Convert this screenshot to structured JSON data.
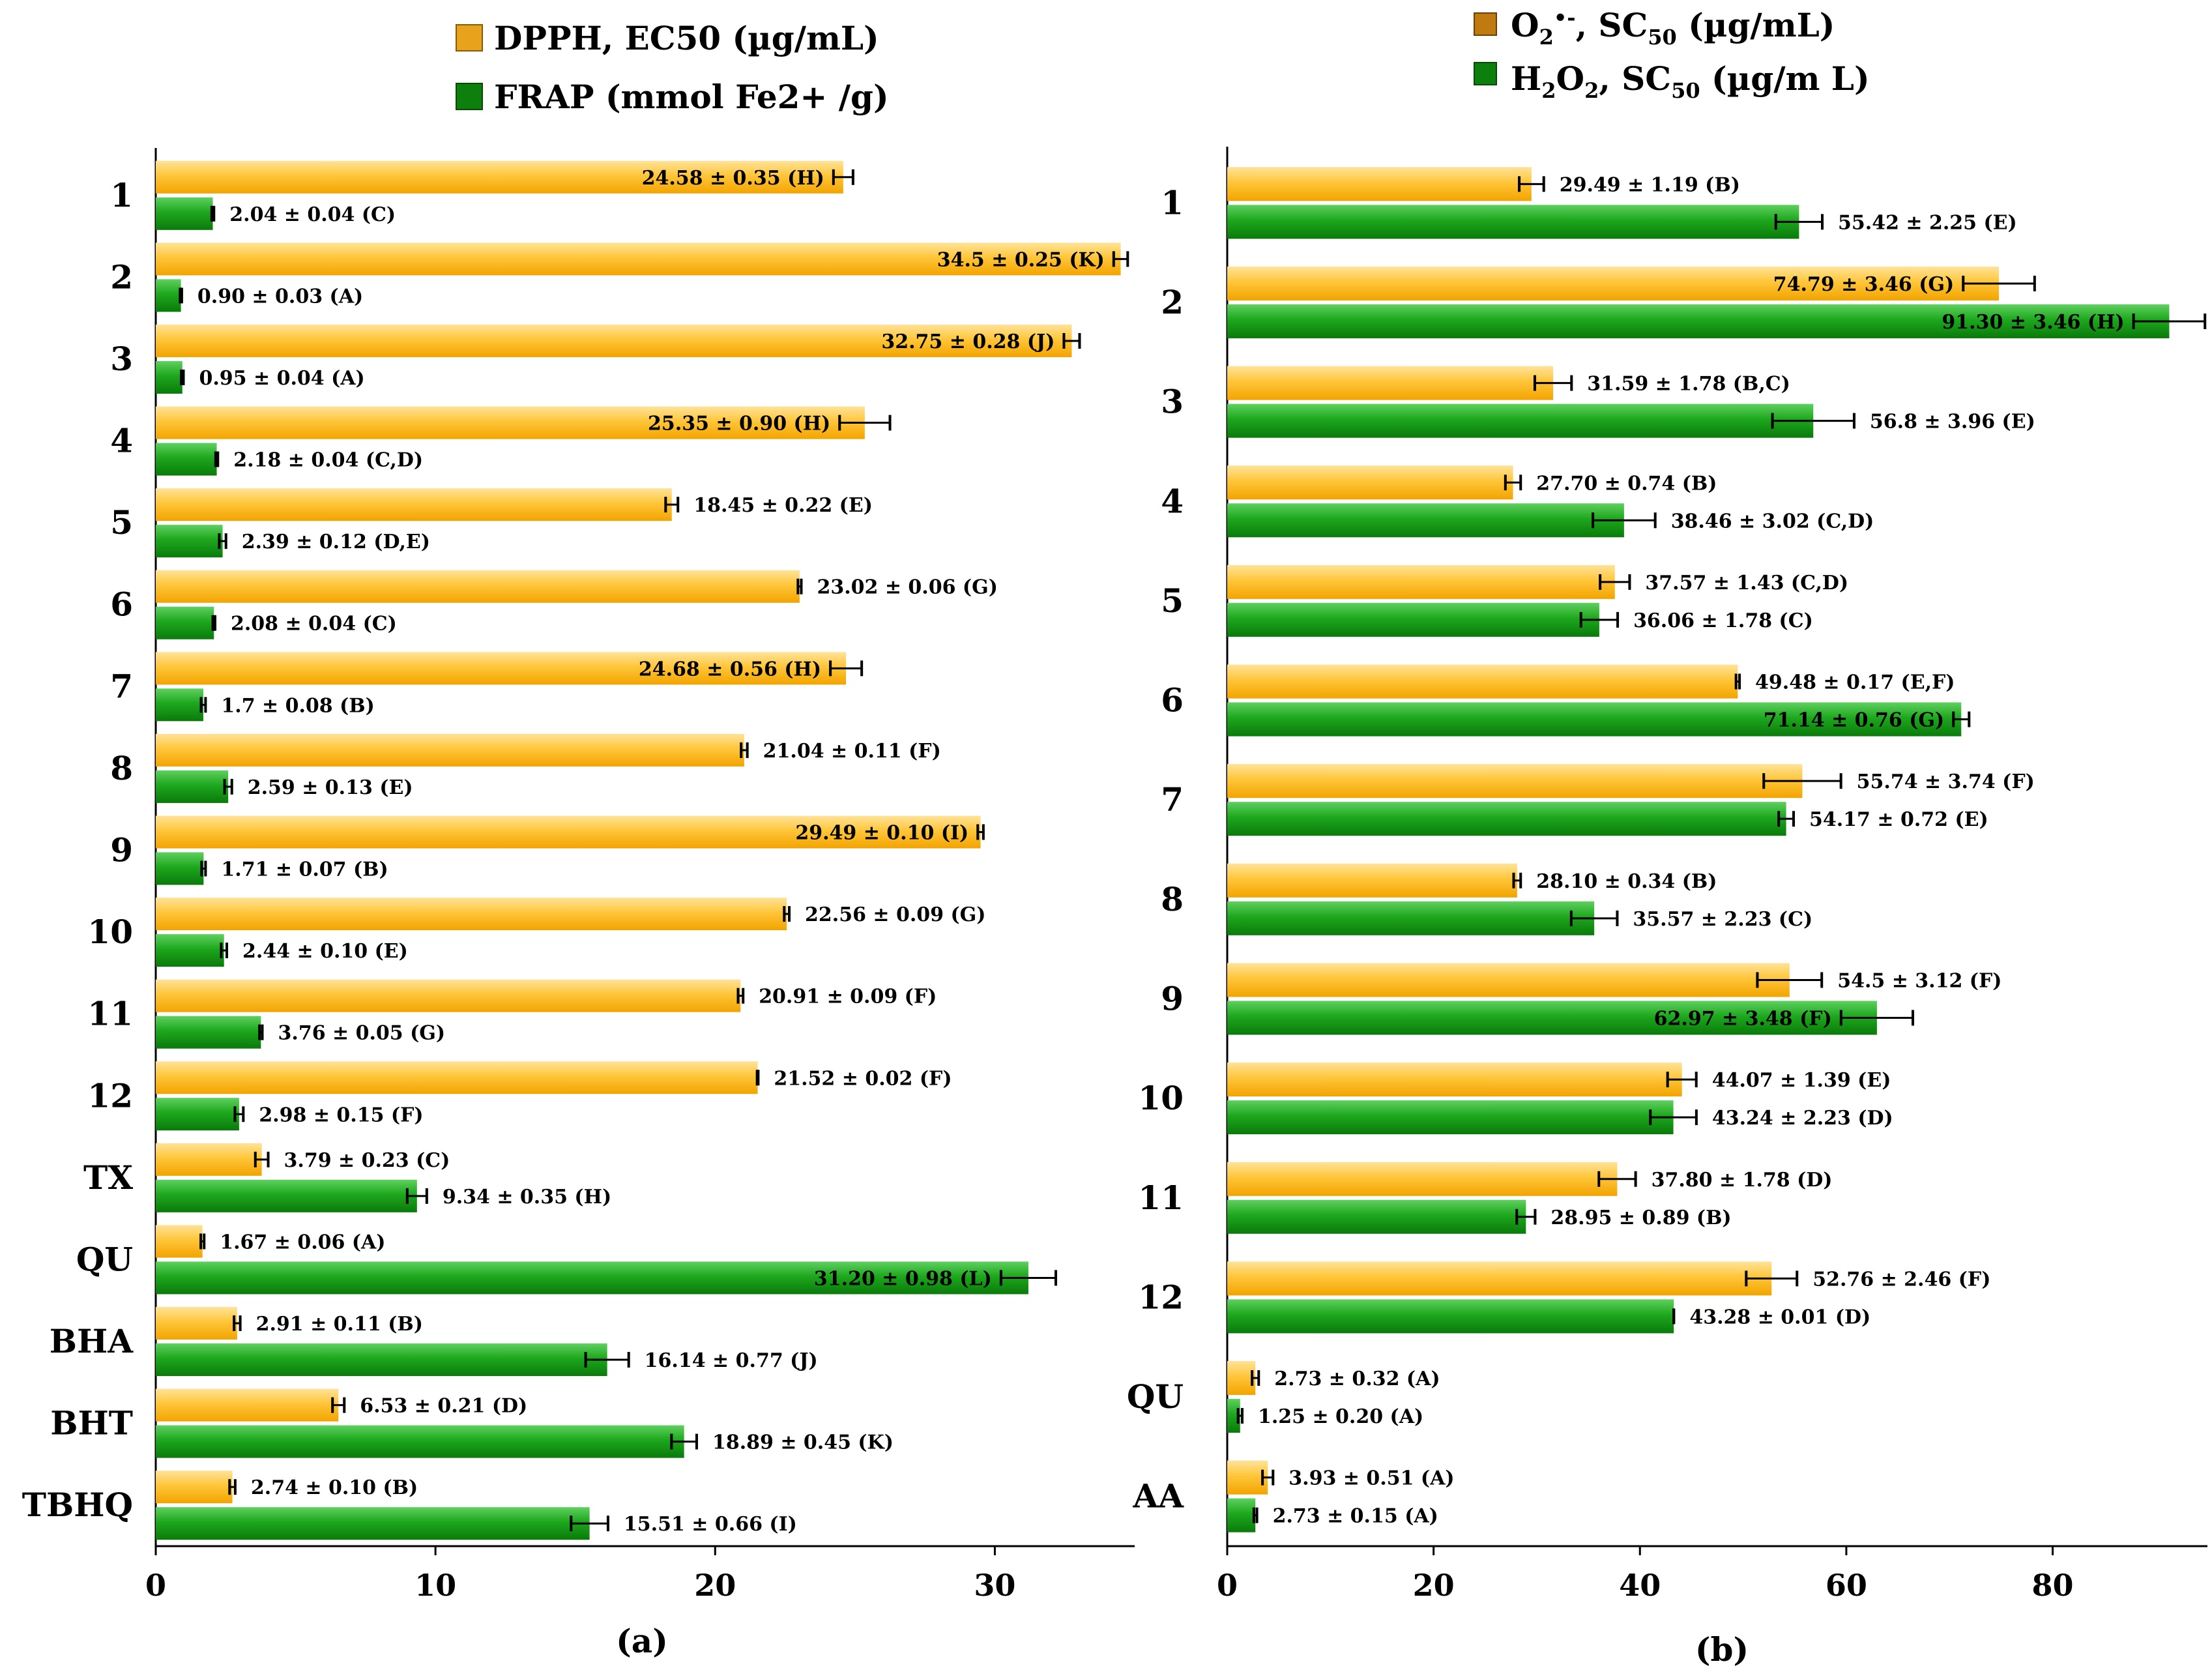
{
  "colors": {
    "orange": "#FFBE22",
    "orange_light": "#FFE39A",
    "green": "#14A014",
    "green_light": "#5FD05F"
  },
  "chart_data": [
    {
      "type": "bar",
      "orientation": "horizontal",
      "panel_label": "(a)",
      "categories": [
        "1",
        "2",
        "3",
        "4",
        "5",
        "6",
        "7",
        "8",
        "9",
        "10",
        "11",
        "12",
        "TX",
        "QU",
        "BHA",
        "BHT",
        "TBHQ"
      ],
      "xlim": [
        0,
        35
      ],
      "xticks": [
        "0",
        "10",
        "20",
        "30"
      ],
      "legend_position": "top",
      "series": [
        {
          "name": "DPPH, EC50 (µg/mL)",
          "color": "orange",
          "values": [
            24.58,
            34.5,
            32.75,
            25.35,
            18.45,
            23.02,
            24.68,
            21.04,
            29.49,
            22.56,
            20.91,
            21.52,
            3.79,
            1.67,
            2.91,
            6.53,
            2.74
          ],
          "errors": [
            0.35,
            0.25,
            0.28,
            0.9,
            0.22,
            0.06,
            0.56,
            0.11,
            0.1,
            0.09,
            0.09,
            0.02,
            0.23,
            0.06,
            0.11,
            0.21,
            0.1
          ],
          "labels": [
            "24.58 ± 0.35 (H)",
            "34.5 ± 0.25 (K)",
            "32.75 ± 0.28 (J)",
            "25.35 ± 0.90 (H)",
            "18.45 ± 0.22 (E)",
            "23.02 ± 0.06 (G)",
            "24.68 ± 0.56 (H)",
            "21.04 ± 0.11 (F)",
            "29.49 ± 0.10 (I)",
            "22.56 ± 0.09 (G)",
            "20.91 ± 0.09 (F)",
            "21.52 ± 0.02 (F)",
            "3.79 ± 0.23 (C)",
            "1.67 ± 0.06 (A)",
            "2.91 ± 0.11 (B)",
            "6.53 ± 0.21 (D)",
            "2.74 ± 0.10 (B)"
          ],
          "label_inside": [
            true,
            true,
            true,
            true,
            false,
            false,
            true,
            false,
            true,
            false,
            false,
            false,
            false,
            false,
            false,
            false,
            false
          ]
        },
        {
          "name": "FRAP (mmol Fe2+ /g)",
          "color": "green",
          "values": [
            2.04,
            0.9,
            0.95,
            2.18,
            2.39,
            2.08,
            1.7,
            2.59,
            1.71,
            2.44,
            3.76,
            2.98,
            9.34,
            31.2,
            16.14,
            18.89,
            15.51
          ],
          "errors": [
            0.04,
            0.03,
            0.04,
            0.04,
            0.12,
            0.04,
            0.08,
            0.13,
            0.07,
            0.1,
            0.05,
            0.15,
            0.35,
            0.98,
            0.77,
            0.45,
            0.66
          ],
          "labels": [
            "2.04 ± 0.04 (C)",
            "0.90 ± 0.03 (A)",
            "0.95 ± 0.04 (A)",
            "2.18 ± 0.04 (C,D)",
            "2.39 ± 0.12 (D,E)",
            "2.08 ± 0.04 (C)",
            "1.7 ± 0.08 (B)",
            "2.59 ± 0.13 (E)",
            "1.71 ± 0.07 (B)",
            "2.44 ± 0.10 (E)",
            "3.76 ± 0.05 (G)",
            "2.98 ± 0.15 (F)",
            "9.34 ± 0.35 (H)",
            "31.20 ± 0.98 (L)",
            "16.14 ± 0.77 (J)",
            "18.89 ± 0.45 (K)",
            "15.51 ± 0.66 (I)"
          ],
          "label_inside": [
            false,
            false,
            false,
            false,
            false,
            false,
            false,
            false,
            false,
            false,
            false,
            false,
            false,
            true,
            false,
            false,
            false
          ]
        }
      ]
    },
    {
      "type": "bar",
      "orientation": "horizontal",
      "panel_label": "(b)",
      "categories": [
        "1",
        "2",
        "3",
        "4",
        "5",
        "6",
        "7",
        "8",
        "9",
        "10",
        "11",
        "12",
        "QU",
        "AA"
      ],
      "xlim": [
        0,
        95
      ],
      "xticks": [
        "0",
        "20",
        "40",
        "60",
        "80"
      ],
      "legend_position": "top",
      "series": [
        {
          "name_parts": [
            "O",
            "2",
            "•-",
            ", SC",
            "50",
            " (µg/mL)"
          ],
          "color": "orange",
          "values": [
            29.49,
            74.79,
            31.59,
            27.7,
            37.57,
            49.48,
            55.74,
            28.1,
            54.5,
            44.07,
            37.8,
            52.76,
            2.73,
            3.93
          ],
          "errors": [
            1.19,
            3.46,
            1.78,
            0.74,
            1.43,
            0.17,
            3.74,
            0.34,
            3.12,
            1.39,
            1.78,
            2.46,
            0.32,
            0.51
          ],
          "labels": [
            "29.49 ± 1.19 (B)",
            "74.79 ± 3.46 (G)",
            "31.59 ± 1.78 (B,C)",
            "27.70 ± 0.74 (B)",
            "37.57 ± 1.43 (C,D)",
            "49.48 ± 0.17 (E,F)",
            "55.74 ± 3.74 (F)",
            "28.10 ± 0.34 (B)",
            "54.5 ± 3.12 (F)",
            "44.07 ± 1.39 (E)",
            "37.80 ± 1.78 (D)",
            "52.76 ± 2.46 (F)",
            "2.73 ± 0.32 (A)",
            "3.93 ± 0.51 (A)"
          ],
          "label_inside": [
            false,
            true,
            false,
            false,
            false,
            false,
            false,
            false,
            false,
            false,
            false,
            false,
            false,
            false
          ]
        },
        {
          "name_parts": [
            "H",
            "2",
            "O",
            "2",
            ", SC",
            "50",
            " (µg/m L)"
          ],
          "color": "green",
          "values": [
            55.42,
            91.3,
            56.8,
            38.46,
            36.06,
            71.14,
            54.17,
            35.57,
            62.97,
            43.24,
            28.95,
            43.28,
            1.25,
            2.73
          ],
          "errors": [
            2.25,
            3.46,
            3.96,
            3.02,
            1.78,
            0.76,
            0.72,
            2.23,
            3.48,
            2.23,
            0.89,
            0.01,
            0.2,
            0.15
          ],
          "labels": [
            "55.42 ± 2.25 (E)",
            "91.30 ± 3.46 (H)",
            "56.8 ± 3.96 (E)",
            "38.46 ± 3.02 (C,D)",
            "36.06 ± 1.78 (C)",
            "71.14 ± 0.76 (G)",
            "54.17 ± 0.72 (E)",
            "35.57 ± 2.23 (C)",
            "62.97 ± 3.48 (F)",
            "43.24 ± 2.23 (D)",
            "28.95 ± 0.89 (B)",
            "43.28 ± 0.01 (D)",
            "1.25 ± 0.20 (A)",
            "2.73 ± 0.15 (A)"
          ],
          "label_inside": [
            false,
            true,
            false,
            false,
            false,
            true,
            false,
            false,
            true,
            false,
            false,
            false,
            false,
            false
          ]
        }
      ]
    }
  ]
}
